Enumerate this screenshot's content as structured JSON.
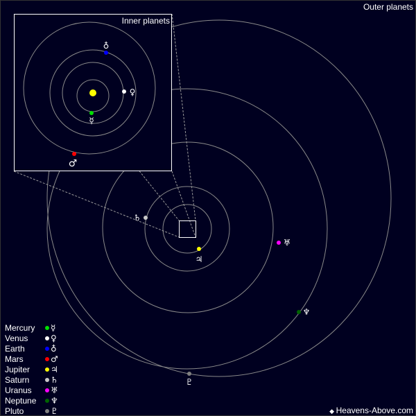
{
  "title": "Outer planets",
  "inset_title": "Inner planets",
  "credit": "Heavens-Above.com",
  "credit_icon": "satellite-icon",
  "sun_color": "#ffff00",
  "background_color": "#000020",
  "planets": [
    {
      "name": "Mercury",
      "symbol": "☿",
      "color": "#00e000"
    },
    {
      "name": "Venus",
      "symbol": "♀",
      "color": "#ffffff"
    },
    {
      "name": "Earth",
      "symbol": "♁",
      "color": "#0000ff"
    },
    {
      "name": "Mars",
      "symbol": "♂",
      "color": "#ff0000"
    },
    {
      "name": "Jupiter",
      "symbol": "♃",
      "color": "#ffff00"
    },
    {
      "name": "Saturn",
      "symbol": "♄",
      "color": "#c8c8c8"
    },
    {
      "name": "Uranus",
      "symbol": "♅",
      "color": "#ff00ff"
    },
    {
      "name": "Neptune",
      "symbol": "♆",
      "color": "#006400"
    },
    {
      "name": "Pluto",
      "symbol": "♇",
      "color": "#808080"
    }
  ]
}
